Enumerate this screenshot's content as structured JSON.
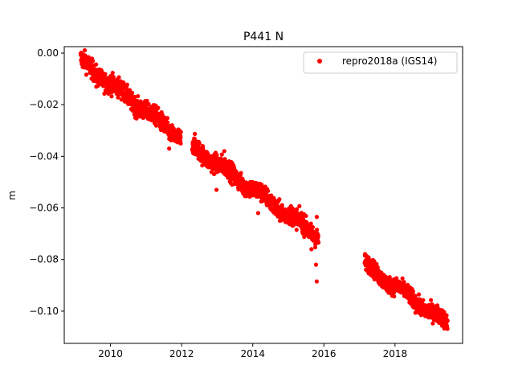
{
  "chart_data": {
    "type": "scatter",
    "title": "P441 N",
    "xlabel": "",
    "ylabel": "m",
    "xlim": [
      2008.7,
      2019.9
    ],
    "ylim": [
      -0.1125,
      0.0025
    ],
    "xticks": [
      2010,
      2012,
      2014,
      2016,
      2018
    ],
    "xtick_labels": [
      "2010",
      "2012",
      "2014",
      "2016",
      "2018"
    ],
    "yticks": [
      0.0,
      -0.02,
      -0.04,
      -0.06,
      -0.08,
      -0.1
    ],
    "ytick_labels": [
      "0.00",
      "−0.02",
      "−0.04",
      "−0.06",
      "−0.08",
      "−0.10"
    ],
    "grid": false,
    "legend_position": "top-right",
    "series": [
      {
        "name": "repro2018a (IGS14)",
        "color": "#ff0000",
        "marker": "circle",
        "segments": [
          {
            "x_start": 2009.16,
            "x_end": 2011.98,
            "y_start": -0.003,
            "y_end": -0.033,
            "spread": 0.0018,
            "step": 0.004
          },
          {
            "x_start": 2012.3,
            "x_end": 2015.85,
            "y_start": -0.036,
            "y_end": -0.071,
            "spread": 0.0018,
            "step": 0.004
          },
          {
            "x_start": 2017.15,
            "x_end": 2019.48,
            "y_start": -0.082,
            "y_end": -0.105,
            "spread": 0.0016,
            "step": 0.004
          }
        ],
        "outliers": [
          {
            "x": 2009.18,
            "y": 0.0
          },
          {
            "x": 2009.6,
            "y": -0.013
          },
          {
            "x": 2011.65,
            "y": -0.037
          },
          {
            "x": 2012.35,
            "y": -0.039
          },
          {
            "x": 2012.98,
            "y": -0.053
          },
          {
            "x": 2013.2,
            "y": -0.038
          },
          {
            "x": 2014.15,
            "y": -0.062
          },
          {
            "x": 2015.18,
            "y": -0.066
          },
          {
            "x": 2015.65,
            "y": -0.076
          },
          {
            "x": 2015.78,
            "y": -0.082
          },
          {
            "x": 2015.8,
            "y": -0.0635
          },
          {
            "x": 2015.8,
            "y": -0.0885
          },
          {
            "x": 2017.15,
            "y": -0.081
          }
        ]
      }
    ]
  }
}
